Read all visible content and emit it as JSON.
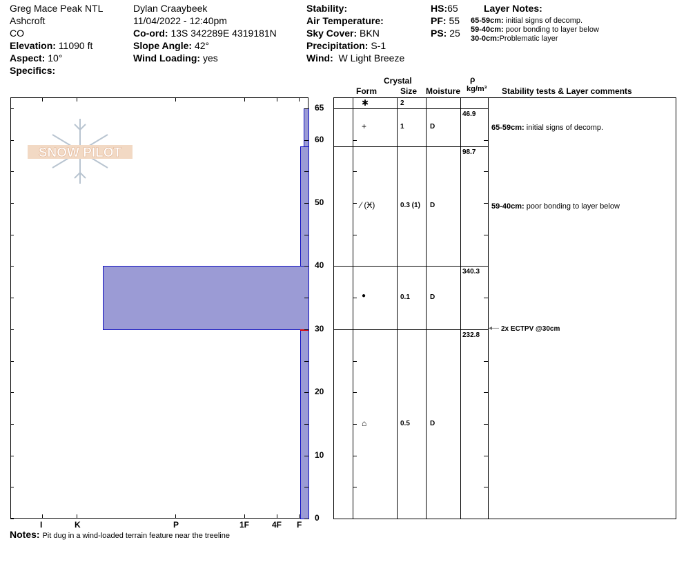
{
  "header": {
    "location": "Greg Mace Peak NTL",
    "area": "Ashcroft",
    "state": "CO",
    "elevation_label": "Elevation:",
    "elevation": "11090 ft",
    "aspect_label": "Aspect:",
    "aspect": "10°",
    "specifics_label": "Specifics:",
    "observer": "Dylan Craaybeek",
    "datetime": "11/04/2022 - 12:40pm",
    "coord_label": "Co-ord:",
    "coord": "13S 342289E 4319181N",
    "slope_label": "Slope Angle:",
    "slope": "42°",
    "wind_loading_label": "Wind Loading:",
    "wind_loading": "yes",
    "stability_label": "Stability:",
    "air_temp_label": "Air Temperature:",
    "sky_label": "Sky Cover:",
    "sky": "BKN",
    "precip_label": "Precipitation:",
    "precip": "S-1",
    "wind_label": "Wind:",
    "wind": "W Light Breeze",
    "hs_label": "HS:",
    "hs": "65",
    "pf_label": "PF:",
    "pf": "55",
    "ps_label": "PS:",
    "ps": "25",
    "layer_notes_title": "Layer Notes:",
    "layer_notes": [
      {
        "range": "65-59cm:",
        "text": "initial signs of decomp."
      },
      {
        "range": "59-40cm:",
        "text": "poor bonding to layer below"
      },
      {
        "range": "30-0cm:",
        "text": "Problematic layer"
      }
    ]
  },
  "table_headers": {
    "crystal": "Crystal",
    "form": "Form",
    "size": "Size",
    "moisture": "Moisture",
    "rho": "ρ",
    "density_unit": "kg/m³",
    "comments": "Stability tests & Layer comments"
  },
  "chart_data": {
    "type": "bar",
    "orientation": "horizontal",
    "ylabel": "",
    "y_range": [
      0,
      65
    ],
    "depth_ticks": [
      "0",
      "10",
      "20",
      "30",
      "40",
      "50",
      "60",
      "65"
    ],
    "hardness_ticks": [
      "I",
      "K",
      "P",
      "1F",
      "4F",
      "F"
    ],
    "bar_color": "#9b9bd5",
    "border_color": "#1010c0",
    "layers": [
      {
        "top": 65,
        "bottom": 59,
        "hardness": "F-",
        "form": "+",
        "size": "1",
        "moisture": "D",
        "density": "46.9",
        "comment_range": "65-59cm:",
        "comment": "initial signs of decomp."
      },
      {
        "top": 59,
        "bottom": 40,
        "hardness": "F",
        "form": "⁄ (Ӿ)",
        "size": "0.3 (1)",
        "moisture": "D",
        "density": "98.7",
        "comment_range": "59-40cm:",
        "comment": "poor bonding to layer below"
      },
      {
        "top": 40,
        "bottom": 30,
        "hardness": "K-",
        "form": "●",
        "size": "0.1",
        "moisture": "D",
        "density": "340.3",
        "comment_range": "",
        "comment": ""
      },
      {
        "top": 30,
        "bottom": 0,
        "hardness": "F",
        "form": "⌂",
        "size": "0.5",
        "moisture": "D",
        "density": "232.8",
        "comment_range": "",
        "comment": ""
      }
    ],
    "surface": {
      "form": "✱",
      "size": "2"
    },
    "stability_tests": [
      {
        "depth": 30,
        "label": "2x ECTPV @30cm"
      }
    ]
  },
  "notes_label": "Notes:",
  "notes": "Pit dug in a wind-loaded terrain feature near the treeline",
  "logo_text": "SNOW PILOT"
}
